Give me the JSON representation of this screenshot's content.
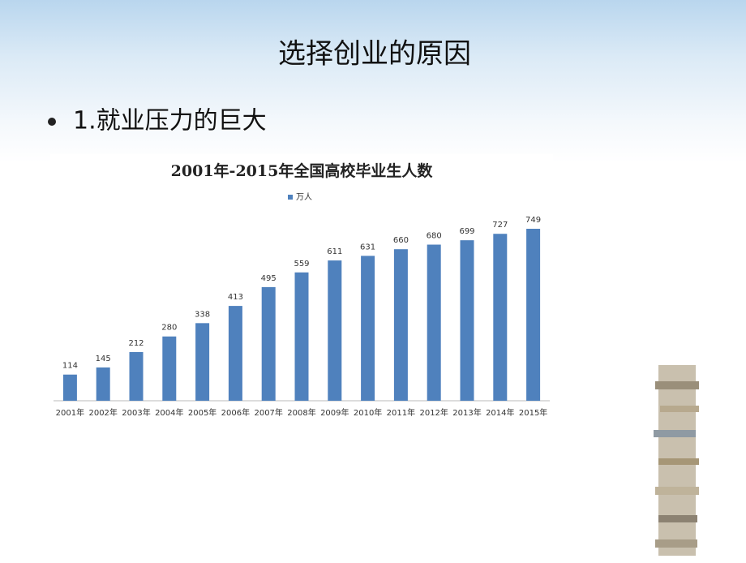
{
  "slide": {
    "title": "选择创业的原因",
    "bullet": "1.就业压力的巨大"
  },
  "chart_data": {
    "type": "bar",
    "title": "2001年-2015年全国高校毕业生人数",
    "categories": [
      "2001年",
      "2002年",
      "2003年",
      "2004年",
      "2005年",
      "2006年",
      "2007年",
      "2008年",
      "2009年",
      "2010年",
      "2011年",
      "2012年",
      "2013年",
      "2014年",
      "2015年"
    ],
    "series": [
      {
        "name": "万人",
        "color": "#4f81bd",
        "values": [
          114,
          145,
          212,
          280,
          338,
          413,
          495,
          559,
          611,
          631,
          660,
          680,
          699,
          727,
          749
        ]
      }
    ],
    "legend": "top",
    "grid": false
  }
}
